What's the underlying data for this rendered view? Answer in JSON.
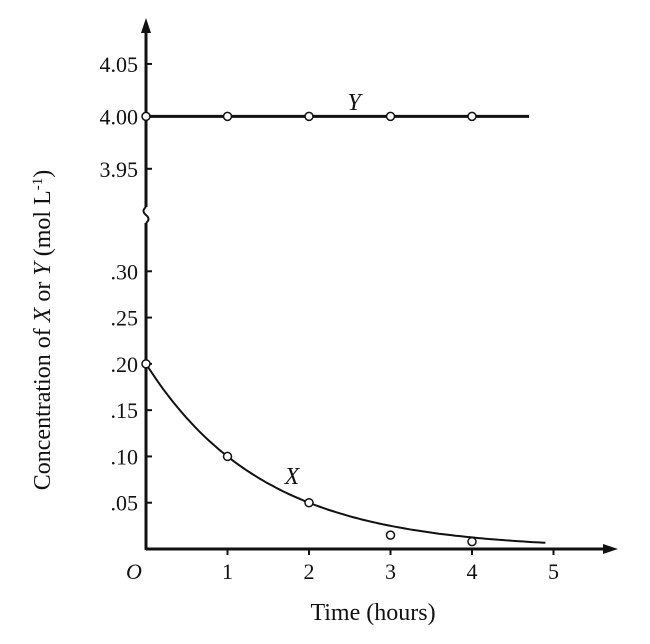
{
  "chart_data": {
    "type": "line",
    "xlabel": "Time (hours)",
    "ylabel_parts": [
      "Concentration of ",
      "X",
      " or ",
      "Y",
      " (mol L",
      "-1",
      ")"
    ],
    "x_ticks": [
      "O",
      "1",
      "2",
      "3",
      "4",
      "5"
    ],
    "x_range": [
      0,
      5.6
    ],
    "y_break": true,
    "upper_panel": {
      "ylim": [
        3.925,
        4.09
      ],
      "y_ticks": [
        {
          "value": 3.95,
          "label": "3.95"
        },
        {
          "value": 4.0,
          "label": "4.00"
        },
        {
          "value": 4.05,
          "label": "4.05"
        }
      ]
    },
    "lower_panel": {
      "ylim": [
        0,
        0.35
      ],
      "y_ticks": [
        {
          "value": 0.05,
          "label": ".05"
        },
        {
          "value": 0.1,
          "label": ".10"
        },
        {
          "value": 0.15,
          "label": ".15"
        },
        {
          "value": 0.2,
          "label": ".20"
        },
        {
          "value": 0.25,
          "label": ".25"
        },
        {
          "value": 0.3,
          "label": ".30"
        }
      ]
    },
    "series": [
      {
        "name": "Y",
        "panel": "upper",
        "x": [
          0,
          1,
          2,
          3,
          4
        ],
        "y": [
          4.0,
          4.0,
          4.0,
          4.0,
          4.0
        ],
        "line_to_x": 4.7
      },
      {
        "name": "X",
        "panel": "lower",
        "x": [
          0,
          1,
          2,
          3,
          4
        ],
        "y": [
          0.2,
          0.1,
          0.05,
          0.015,
          0.008
        ],
        "curve": {
          "c0": 0.2,
          "k": 0.693,
          "to_x": 4.9
        }
      }
    ]
  }
}
